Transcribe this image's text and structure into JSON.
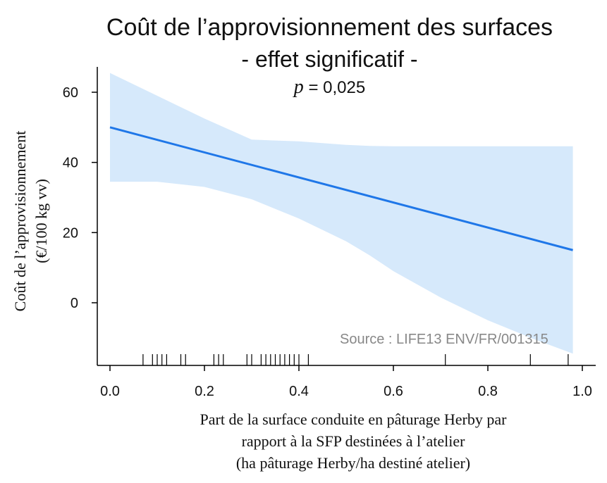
{
  "header": {
    "title_line1": "Coût de l’approvisionnement des surfaces",
    "title_line2": "- effet significatif -",
    "p_symbol": "p",
    "p_value_text": " = 0,025"
  },
  "source_note": "Source : LIFE13 ENV/FR/001315",
  "colors": {
    "line": "#1f77e8",
    "band": "#d6e9fb",
    "axis": "#000000",
    "source_text": "#888888"
  },
  "chart_data": {
    "type": "line",
    "xlabel_lines": [
      "Part de la surface conduite en pâturage Herby par",
      "rapport à la SFP destinées à l’atelier",
      "(ha pâturage Herby/ha destiné atelier)"
    ],
    "ylabel_lines": [
      "Coût de l’approvisionnement",
      "(€/100 kg vv)"
    ],
    "xlim": [
      0.0,
      1.0
    ],
    "ylim": [
      -15,
      68
    ],
    "x_ticks": [
      0.0,
      0.2,
      0.4,
      0.6,
      0.8,
      1.0
    ],
    "x_tick_labels": [
      "0.0",
      "0.2",
      "0.4",
      "0.6",
      "0.8",
      "1.0"
    ],
    "y_ticks": [
      0,
      20,
      40,
      60
    ],
    "y_tick_labels": [
      "0",
      "20",
      "40",
      "60"
    ],
    "fit": {
      "x": [
        0.0,
        0.98
      ],
      "y": [
        50.0,
        15.0
      ]
    },
    "confidence_band": {
      "x": [
        0.0,
        0.1,
        0.2,
        0.3,
        0.4,
        0.5,
        0.55,
        0.6,
        0.7,
        0.8,
        0.9,
        0.98
      ],
      "upper": [
        65.5,
        59.0,
        52.5,
        46.5,
        46.0,
        45.0,
        44.7,
        44.6,
        44.6,
        44.6,
        44.6,
        44.6
      ],
      "lower": [
        34.5,
        34.5,
        33.0,
        29.5,
        24.0,
        17.5,
        13.5,
        9.0,
        1.5,
        -5.0,
        -10.5,
        -14.5
      ]
    },
    "rug": [
      0.07,
      0.09,
      0.1,
      0.11,
      0.12,
      0.15,
      0.16,
      0.22,
      0.23,
      0.24,
      0.29,
      0.3,
      0.32,
      0.33,
      0.34,
      0.35,
      0.36,
      0.37,
      0.38,
      0.39,
      0.4,
      0.42,
      0.71,
      0.89,
      0.97
    ],
    "grid": false,
    "legend": "none"
  }
}
